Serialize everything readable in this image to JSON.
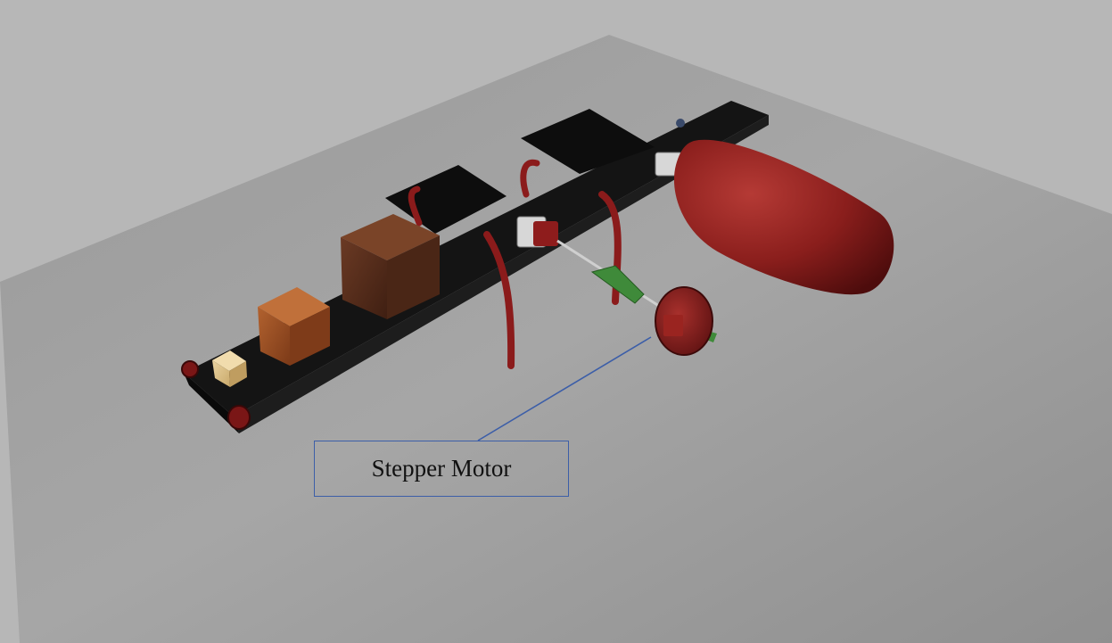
{
  "callout": {
    "label": "Stepper Motor"
  },
  "colors": {
    "background": "#b7b7b7",
    "floor": "#9d9d9d",
    "belt": "#121212",
    "accent_red": "#8e1c1c",
    "callout_border": "#3c5ea8",
    "coupling_green": "#3f8a3a"
  }
}
